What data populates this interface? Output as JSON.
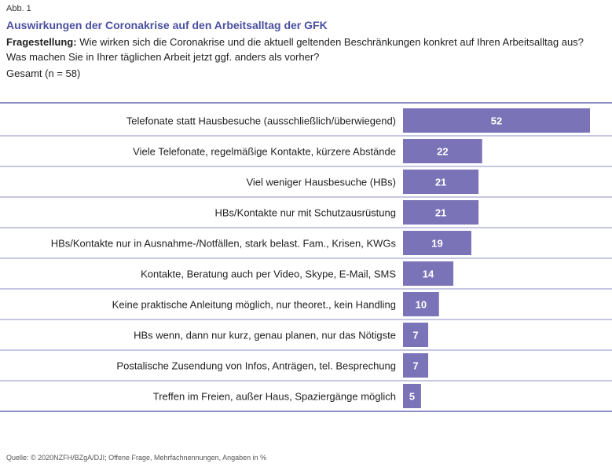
{
  "figure_label": "Abb. 1",
  "title": "Auswirkungen der Coronakrise auf den Arbeitsalltag der GFK",
  "question_label": "Fragestellung:",
  "question_text": " Wie wirken sich die Coronakrise und die aktuell geltenden Beschränkungen konkret auf Ihren Arbeitsalltag aus? Was machen Sie in Ihrer täglichen Arbeit jetzt ggf. anders als vorher?",
  "sample": "Gesamt (n = 58)",
  "source": "Quelle: © 2020NZFH/BZgA/DJI; Offene Frage, Mehrfachnennungen, Angaben in %",
  "colors": {
    "bar": "#7b73b8",
    "row_line": "#8d8fc4",
    "title": "#4a4fa0"
  },
  "chart_data": {
    "type": "bar",
    "orientation": "horizontal",
    "categories": [
      "Telefonate statt Hausbesuche (ausschließlich/überwiegend)",
      "Viele Telefonate, regelmäßige Kontakte, kürzere Abstände",
      "Viel weniger Hausbesuche (HBs)",
      "HBs/Kontakte nur mit Schutzausrüstung",
      "HBs/Kontakte nur in Ausnahme-/Notfällen, stark belast. Fam., Krisen, KWGs",
      "Kontakte, Beratung auch per Video, Skype, E-Mail, SMS",
      "Keine praktische Anleitung möglich, nur theoret., kein Handling",
      "HBs wenn, dann nur kurz, genau planen, nur das Nötigste",
      "Postalische Zusendung von Infos, Anträgen, tel. Besprechung",
      "Treffen im Freien, außer Haus, Spaziergänge möglich"
    ],
    "values": [
      52,
      22,
      21,
      21,
      19,
      14,
      10,
      7,
      7,
      5
    ],
    "data_labels": [
      "52",
      "22",
      "21",
      "21",
      "19",
      "14",
      "10",
      "7",
      "7",
      "5"
    ],
    "xlim": [
      0,
      52
    ],
    "grid": false,
    "legend": "none"
  }
}
